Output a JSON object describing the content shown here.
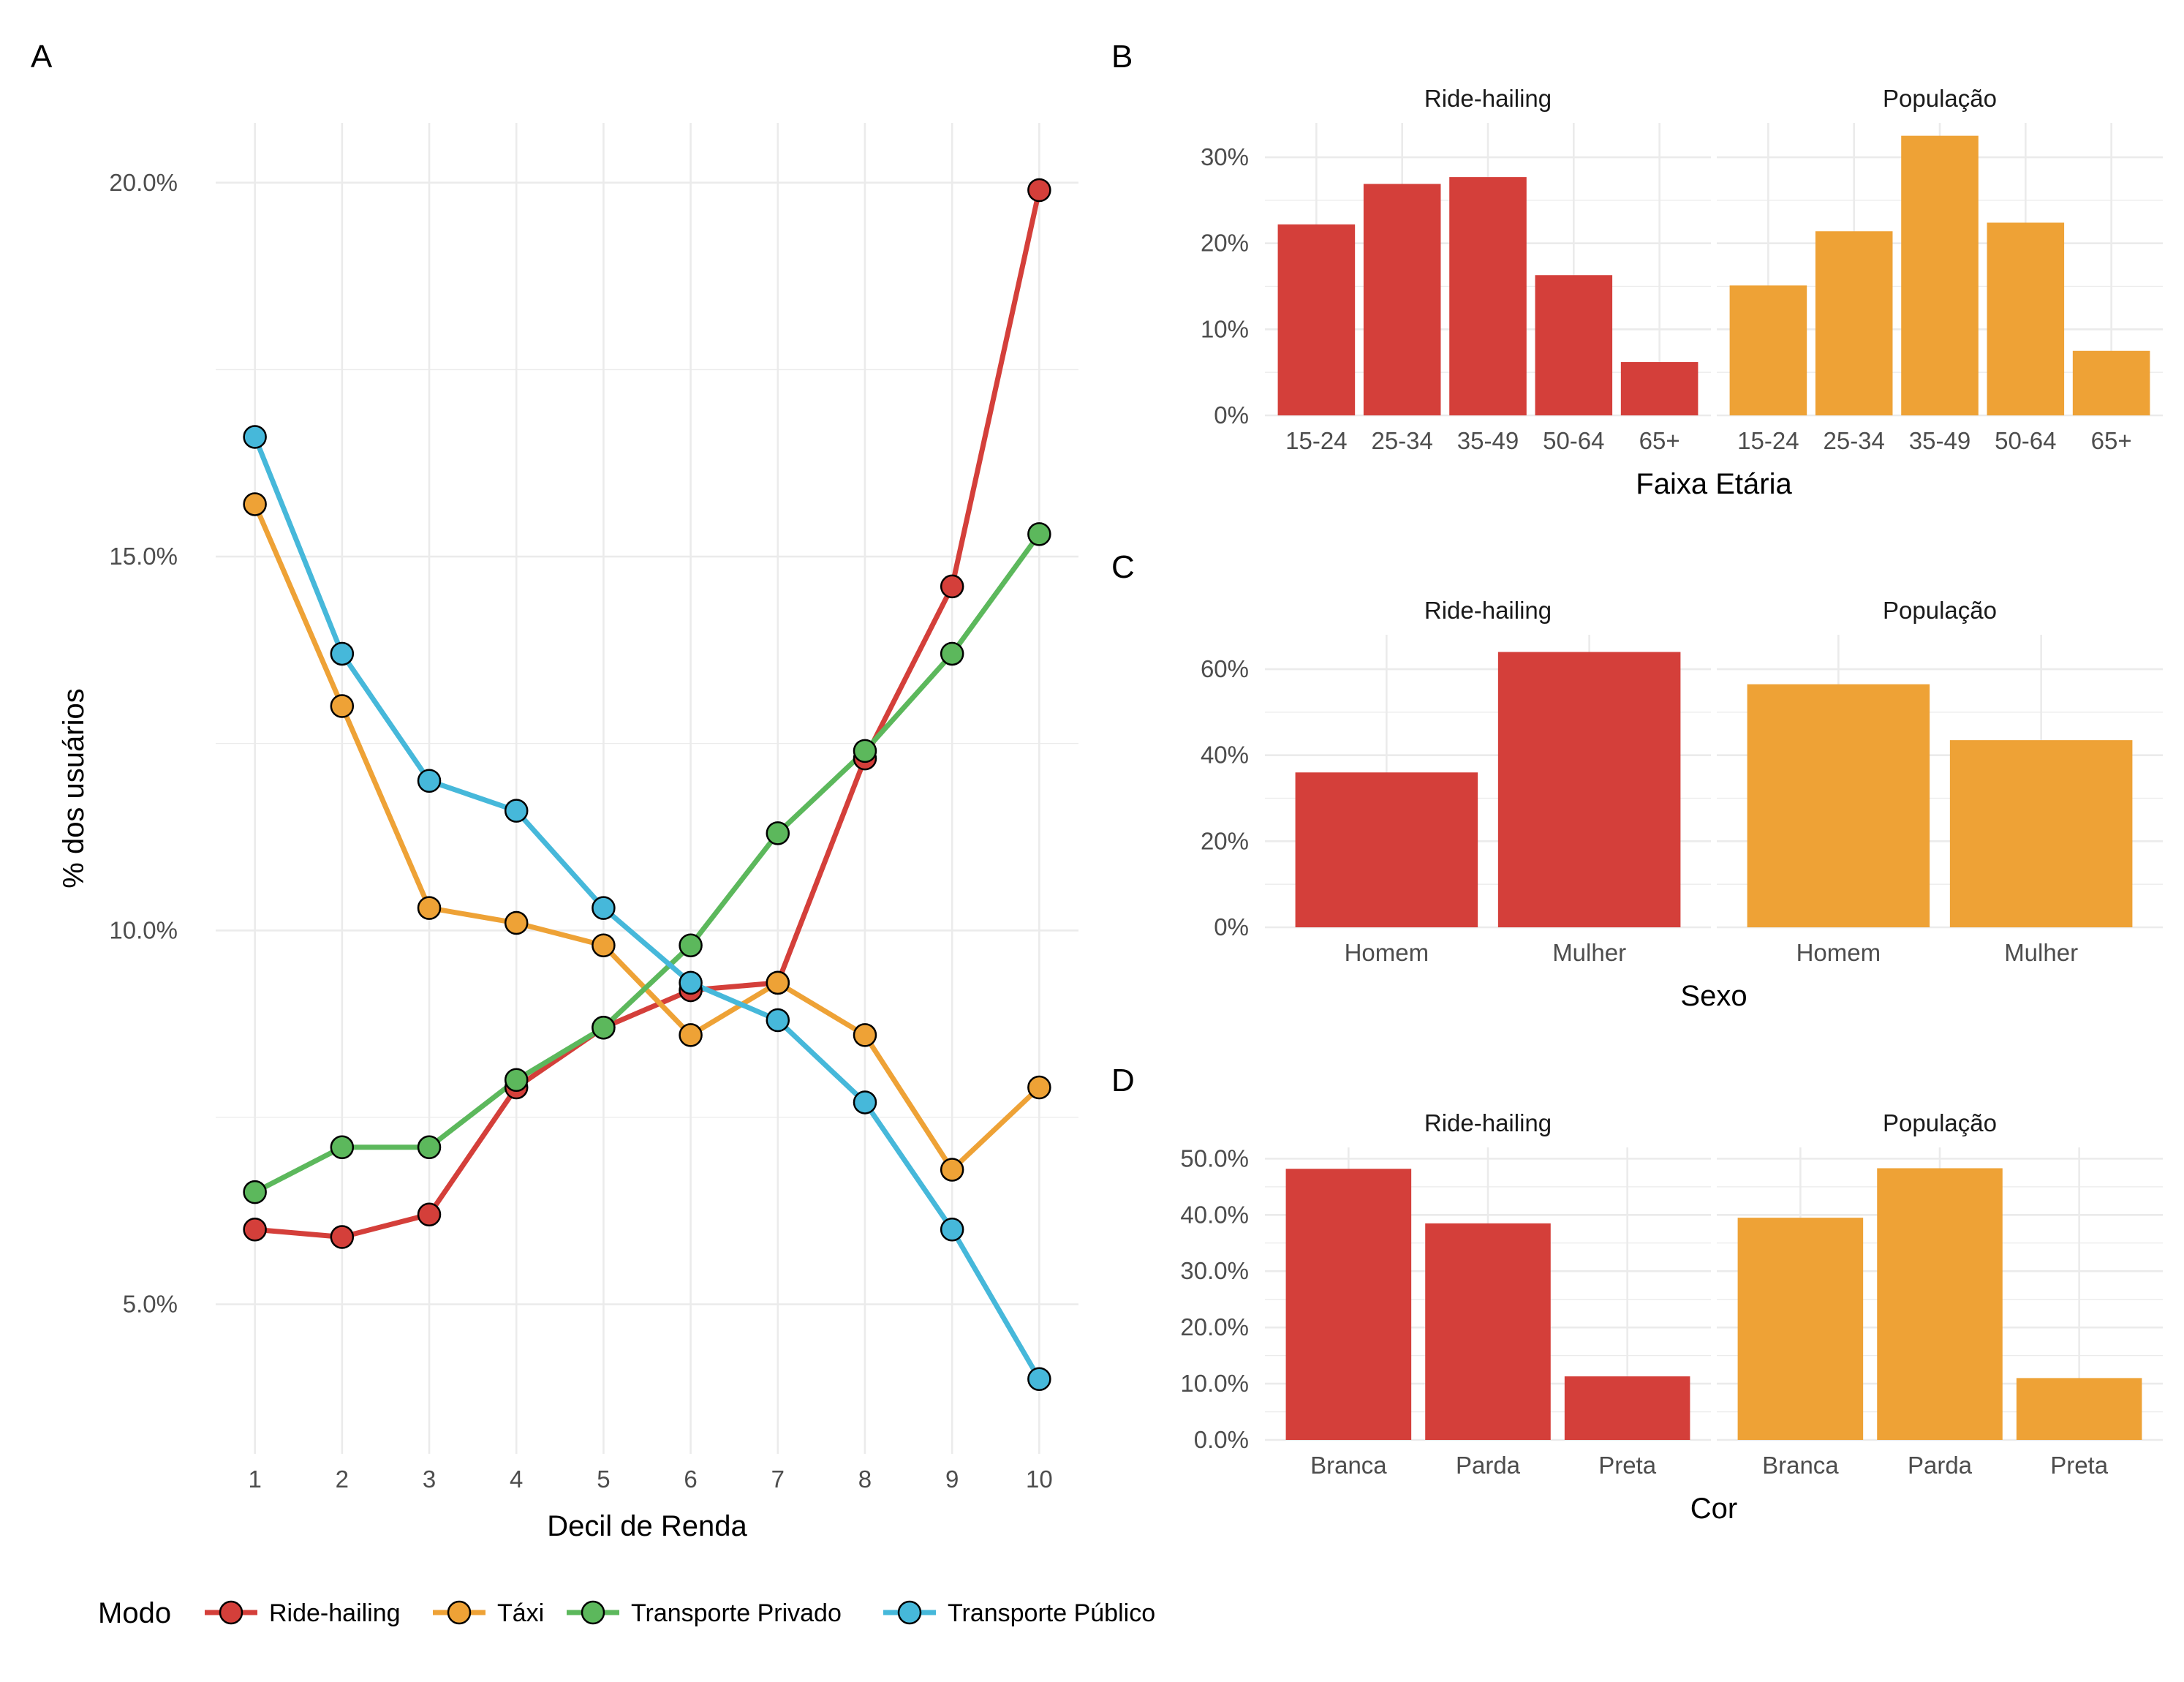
{
  "colors": {
    "ride_hailing": "#d43f3a",
    "taxi": "#eea236",
    "private": "#5cb85c",
    "public": "#46b8da"
  },
  "legend": {
    "title": "Modo",
    "items": [
      "Ride-hailing",
      "Táxi",
      "Transporte Privado",
      "Transporte Público"
    ]
  },
  "chart_data": [
    {
      "panel": "A",
      "type": "line",
      "xlabel": "Decil de Renda",
      "ylabel": "% dos usuários",
      "x": [
        1,
        2,
        3,
        4,
        5,
        6,
        7,
        8,
        9,
        10
      ],
      "ylim": [
        3.0,
        20.8
      ],
      "yticks": [
        5,
        10,
        15,
        20
      ],
      "ytick_labels": [
        "5.0%",
        "10.0%",
        "15.0%",
        "20.0%"
      ],
      "series": [
        {
          "name": "Ride-hailing",
          "values": [
            6.0,
            5.9,
            6.2,
            7.9,
            8.7,
            9.2,
            9.3,
            12.3,
            14.6,
            19.9
          ]
        },
        {
          "name": "Táxi",
          "values": [
            15.7,
            13.0,
            10.3,
            10.1,
            9.8,
            8.6,
            9.3,
            8.6,
            6.8,
            7.9
          ]
        },
        {
          "name": "Transporte Privado",
          "values": [
            6.5,
            7.1,
            7.1,
            8.0,
            8.7,
            9.8,
            11.3,
            12.4,
            13.7,
            15.3
          ]
        },
        {
          "name": "Transporte Público",
          "values": [
            16.6,
            13.7,
            12.0,
            11.6,
            10.3,
            9.3,
            8.8,
            7.7,
            6.0,
            4.0
          ]
        }
      ],
      "legend_position": "bottom",
      "grid": true
    },
    {
      "panel": "B",
      "type": "bar",
      "xlabel": "Faixa Etária",
      "facets": [
        "Ride-hailing",
        "População"
      ],
      "categories": [
        "15-24",
        "25-34",
        "35-49",
        "50-64",
        "65+"
      ],
      "ylim": [
        0,
        34
      ],
      "yticks": [
        0,
        10,
        20,
        30
      ],
      "ytick_labels": [
        "0%",
        "10%",
        "20%",
        "30%"
      ],
      "series": [
        {
          "name": "Ride-hailing",
          "values": [
            22.2,
            26.9,
            27.7,
            16.3,
            6.2
          ]
        },
        {
          "name": "População",
          "values": [
            15.1,
            21.4,
            32.5,
            22.4,
            7.5
          ]
        }
      ],
      "grid": true
    },
    {
      "panel": "C",
      "type": "bar",
      "xlabel": "Sexo",
      "facets": [
        "Ride-hailing",
        "População"
      ],
      "categories": [
        "Homem",
        "Mulher"
      ],
      "ylim": [
        0,
        68
      ],
      "yticks": [
        0,
        20,
        40,
        60
      ],
      "ytick_labels": [
        "0%",
        "20%",
        "40%",
        "60%"
      ],
      "series": [
        {
          "name": "Ride-hailing",
          "values": [
            36.0,
            64.0
          ]
        },
        {
          "name": "População",
          "values": [
            56.5,
            43.5
          ]
        }
      ],
      "grid": true
    },
    {
      "panel": "D",
      "type": "bar",
      "xlabel": "Cor",
      "facets": [
        "Ride-hailing",
        "População"
      ],
      "categories": [
        "Branca",
        "Parda",
        "Preta"
      ],
      "ylim": [
        0,
        52
      ],
      "yticks": [
        0,
        10,
        20,
        30,
        40,
        50
      ],
      "ytick_labels": [
        "0.0%",
        "10.0%",
        "20.0%",
        "30.0%",
        "40.0%",
        "50.0%"
      ],
      "series": [
        {
          "name": "Ride-hailing",
          "values": [
            48.2,
            38.5,
            11.3
          ]
        },
        {
          "name": "População",
          "values": [
            39.5,
            48.3,
            11.0
          ]
        }
      ],
      "grid": true
    }
  ]
}
